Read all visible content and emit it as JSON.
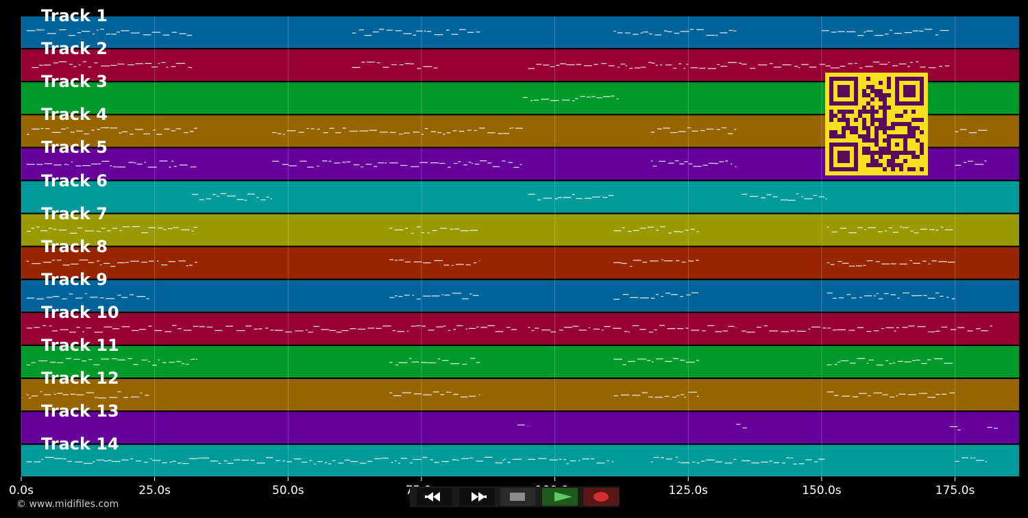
{
  "copyright": "© www.midifiles.com",
  "chart_data": {
    "type": "piano-roll",
    "duration_s": 187,
    "x_ticks": [
      {
        "t": 0,
        "label": "0.0s"
      },
      {
        "t": 25,
        "label": "25.0s"
      },
      {
        "t": 50,
        "label": "50.0s"
      },
      {
        "t": 75,
        "label": "75.0s"
      },
      {
        "t": 100,
        "label": "100.0s"
      },
      {
        "t": 125,
        "label": "125.0s"
      },
      {
        "t": 150,
        "label": "150.0s"
      },
      {
        "t": 175,
        "label": "175.0s"
      }
    ],
    "grid": true,
    "tracks": [
      {
        "name": "Track 1",
        "color": "#00649a",
        "notes": [
          [
            1,
            32
          ],
          [
            62,
            74
          ],
          [
            74,
            86
          ],
          [
            111,
            134
          ],
          [
            150,
            174
          ]
        ]
      },
      {
        "name": "Track 2",
        "color": "#970033",
        "notes": [
          [
            2,
            32
          ],
          [
            62,
            78
          ],
          [
            95,
            135
          ],
          [
            135,
            174
          ]
        ]
      },
      {
        "name": "Track 3",
        "color": "#009a2a",
        "notes": [
          [
            94,
            112
          ]
        ]
      },
      {
        "name": "Track 4",
        "color": "#976500",
        "notes": [
          [
            1,
            33
          ],
          [
            47,
            94
          ],
          [
            118,
            134
          ],
          [
            175,
            181
          ]
        ]
      },
      {
        "name": "Track 5",
        "color": "#65009a",
        "notes": [
          [
            1,
            33
          ],
          [
            47,
            94
          ],
          [
            118,
            134
          ],
          [
            175,
            181
          ]
        ]
      },
      {
        "name": "Track 6",
        "color": "#009a9a",
        "notes": [
          [
            32,
            47
          ],
          [
            95,
            111
          ],
          [
            135,
            151
          ]
        ]
      },
      {
        "name": "Track 7",
        "color": "#989a00",
        "notes": [
          [
            1,
            33
          ],
          [
            69,
            86
          ],
          [
            111,
            127
          ],
          [
            151,
            175
          ]
        ]
      },
      {
        "name": "Track 8",
        "color": "#972500",
        "notes": [
          [
            1,
            33
          ],
          [
            69,
            86
          ],
          [
            111,
            127
          ],
          [
            151,
            175
          ]
        ]
      },
      {
        "name": "Track 9",
        "color": "#00649a",
        "notes": [
          [
            1,
            24
          ],
          [
            69,
            86
          ],
          [
            111,
            127
          ],
          [
            151,
            175
          ]
        ]
      },
      {
        "name": "Track 10",
        "color": "#970033",
        "notes": [
          [
            1,
            74
          ],
          [
            74,
            93
          ],
          [
            95,
            134
          ],
          [
            135,
            182
          ]
        ]
      },
      {
        "name": "Track 11",
        "color": "#009a2a",
        "notes": [
          [
            1,
            33
          ],
          [
            69,
            86
          ],
          [
            111,
            127
          ],
          [
            151,
            175
          ]
        ]
      },
      {
        "name": "Track 12",
        "color": "#976500",
        "notes": [
          [
            1,
            24
          ],
          [
            69,
            86
          ],
          [
            111,
            127
          ],
          [
            151,
            175
          ]
        ]
      },
      {
        "name": "Track 13",
        "color": "#65009a",
        "notes": [
          [
            93,
            95
          ],
          [
            134,
            136
          ],
          [
            174,
            176
          ],
          [
            181,
            183
          ]
        ]
      },
      {
        "name": "Track 14",
        "color": "#009a9a",
        "notes": [
          [
            1,
            33
          ],
          [
            33,
            94
          ],
          [
            95,
            111
          ],
          [
            118,
            134
          ],
          [
            135,
            151
          ],
          [
            175,
            181
          ]
        ]
      }
    ]
  },
  "transport": {
    "rewind": {
      "icon": "rewind-icon",
      "color": "#ffffff"
    },
    "fast_forward": {
      "icon": "fast-forward-icon",
      "color": "#ffffff"
    },
    "stop": {
      "icon": "stop-icon",
      "color": "#8c8c8c"
    },
    "play": {
      "icon": "play-icon",
      "color": "#2c8a2c"
    },
    "record": {
      "icon": "record-icon",
      "color": "#d03030"
    }
  },
  "qr_code": {
    "icon": "qr-code-icon",
    "foreground": "#5a0a5a",
    "background": "#f6e01f"
  }
}
